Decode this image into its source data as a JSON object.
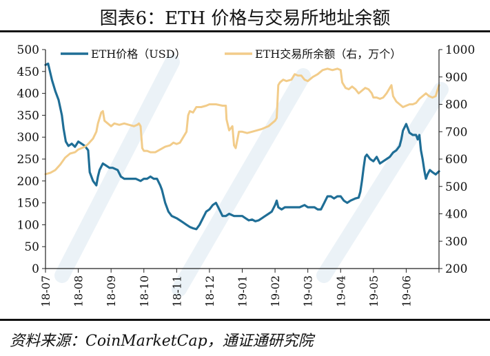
{
  "header": {
    "title": "图表6：ETH 价格与交易所地址余额"
  },
  "footer": {
    "source": "资料来源：CoinMarketCap，通证通研究院"
  },
  "chart_data": {
    "type": "line",
    "title": "图表6：ETH 价格与交易所地址余额",
    "xlabel": "",
    "ylabel": "",
    "x_ticks": [
      "18-07",
      "18-08",
      "18-09",
      "18-10",
      "18-11",
      "18-12",
      "19-01",
      "19-02",
      "19-03",
      "19-04",
      "19-05",
      "19-06"
    ],
    "x_range": [
      0,
      12
    ],
    "y_left": {
      "range": [
        0,
        500
      ],
      "ticks": [
        0,
        50,
        100,
        150,
        200,
        250,
        300,
        350,
        400,
        450,
        500
      ]
    },
    "y_right": {
      "range": [
        200,
        1000
      ],
      "ticks": [
        200,
        300,
        400,
        500,
        600,
        700,
        800,
        900,
        1000
      ]
    },
    "grid": false,
    "legend": "top",
    "series": [
      {
        "name": "ETH价格（USD）",
        "axis": "left",
        "color": "#1f6e96",
        "points": [
          [
            0.0,
            465
          ],
          [
            0.08,
            468
          ],
          [
            0.2,
            430
          ],
          [
            0.3,
            405
          ],
          [
            0.4,
            385
          ],
          [
            0.5,
            350
          ],
          [
            0.55,
            320
          ],
          [
            0.62,
            290
          ],
          [
            0.7,
            280
          ],
          [
            0.8,
            285
          ],
          [
            0.9,
            278
          ],
          [
            1.0,
            290
          ],
          [
            1.1,
            285
          ],
          [
            1.2,
            280
          ],
          [
            1.3,
            270
          ],
          [
            1.35,
            220
          ],
          [
            1.45,
            200
          ],
          [
            1.55,
            190
          ],
          [
            1.6,
            210
          ],
          [
            1.65,
            225
          ],
          [
            1.75,
            240
          ],
          [
            1.85,
            235
          ],
          [
            1.95,
            230
          ],
          [
            2.05,
            230
          ],
          [
            2.2,
            225
          ],
          [
            2.3,
            210
          ],
          [
            2.4,
            205
          ],
          [
            2.5,
            205
          ],
          [
            2.6,
            205
          ],
          [
            2.75,
            205
          ],
          [
            2.9,
            200
          ],
          [
            3.0,
            205
          ],
          [
            3.1,
            205
          ],
          [
            3.2,
            210
          ],
          [
            3.3,
            205
          ],
          [
            3.4,
            205
          ],
          [
            3.5,
            190
          ],
          [
            3.55,
            180
          ],
          [
            3.65,
            150
          ],
          [
            3.75,
            130
          ],
          [
            3.85,
            120
          ],
          [
            4.0,
            115
          ],
          [
            4.1,
            110
          ],
          [
            4.2,
            105
          ],
          [
            4.3,
            100
          ],
          [
            4.4,
            95
          ],
          [
            4.5,
            92
          ],
          [
            4.6,
            90
          ],
          [
            4.7,
            100
          ],
          [
            4.8,
            115
          ],
          [
            4.9,
            130
          ],
          [
            5.0,
            135
          ],
          [
            5.1,
            145
          ],
          [
            5.2,
            150
          ],
          [
            5.3,
            135
          ],
          [
            5.4,
            120
          ],
          [
            5.5,
            120
          ],
          [
            5.6,
            125
          ],
          [
            5.75,
            120
          ],
          [
            5.9,
            120
          ],
          [
            6.0,
            120
          ],
          [
            6.1,
            115
          ],
          [
            6.2,
            110
          ],
          [
            6.3,
            112
          ],
          [
            6.4,
            108
          ],
          [
            6.5,
            110
          ],
          [
            6.6,
            115
          ],
          [
            6.7,
            120
          ],
          [
            6.8,
            125
          ],
          [
            6.9,
            130
          ],
          [
            7.0,
            145
          ],
          [
            7.05,
            155
          ],
          [
            7.1,
            140
          ],
          [
            7.2,
            135
          ],
          [
            7.3,
            140
          ],
          [
            7.45,
            140
          ],
          [
            7.6,
            140
          ],
          [
            7.75,
            140
          ],
          [
            7.9,
            145
          ],
          [
            8.0,
            140
          ],
          [
            8.1,
            140
          ],
          [
            8.2,
            140
          ],
          [
            8.3,
            135
          ],
          [
            8.4,
            135
          ],
          [
            8.5,
            150
          ],
          [
            8.6,
            165
          ],
          [
            8.7,
            165
          ],
          [
            8.8,
            160
          ],
          [
            8.9,
            165
          ],
          [
            9.0,
            165
          ],
          [
            9.1,
            155
          ],
          [
            9.2,
            150
          ],
          [
            9.3,
            155
          ],
          [
            9.45,
            160
          ],
          [
            9.55,
            162
          ],
          [
            9.6,
            175
          ],
          [
            9.65,
            200
          ],
          [
            9.7,
            230
          ],
          [
            9.75,
            255
          ],
          [
            9.8,
            260
          ],
          [
            9.9,
            250
          ],
          [
            10.0,
            245
          ],
          [
            10.1,
            255
          ],
          [
            10.2,
            240
          ],
          [
            10.3,
            245
          ],
          [
            10.4,
            250
          ],
          [
            10.5,
            255
          ],
          [
            10.6,
            265
          ],
          [
            10.7,
            270
          ],
          [
            10.8,
            280
          ],
          [
            10.85,
            295
          ],
          [
            10.9,
            315
          ],
          [
            11.0,
            330
          ],
          [
            11.05,
            320
          ],
          [
            11.1,
            310
          ],
          [
            11.2,
            305
          ],
          [
            11.3,
            305
          ],
          [
            11.35,
            295
          ],
          [
            11.4,
            305
          ],
          [
            11.45,
            270
          ],
          [
            11.5,
            250
          ],
          [
            11.55,
            225
          ],
          [
            11.6,
            205
          ],
          [
            11.65,
            215
          ],
          [
            11.72,
            225
          ],
          [
            11.8,
            220
          ],
          [
            11.9,
            215
          ],
          [
            12.0,
            222
          ]
        ]
      },
      {
        "name": "ETH交易所余额（右，万个）",
        "axis": "right",
        "color": "#f2cc8a",
        "points": [
          [
            0.0,
            545
          ],
          [
            0.15,
            550
          ],
          [
            0.3,
            560
          ],
          [
            0.45,
            580
          ],
          [
            0.6,
            605
          ],
          [
            0.75,
            620
          ],
          [
            0.9,
            625
          ],
          [
            1.0,
            635
          ],
          [
            1.1,
            640
          ],
          [
            1.2,
            645
          ],
          [
            1.3,
            655
          ],
          [
            1.45,
            675
          ],
          [
            1.55,
            700
          ],
          [
            1.6,
            730
          ],
          [
            1.7,
            770
          ],
          [
            1.75,
            775
          ],
          [
            1.8,
            740
          ],
          [
            1.9,
            730
          ],
          [
            2.0,
            720
          ],
          [
            2.1,
            730
          ],
          [
            2.25,
            725
          ],
          [
            2.4,
            730
          ],
          [
            2.55,
            725
          ],
          [
            2.7,
            720
          ],
          [
            2.8,
            725
          ],
          [
            2.85,
            730
          ],
          [
            2.9,
            720
          ],
          [
            2.95,
            640
          ],
          [
            3.0,
            630
          ],
          [
            3.1,
            630
          ],
          [
            3.2,
            625
          ],
          [
            3.35,
            625
          ],
          [
            3.5,
            635
          ],
          [
            3.65,
            645
          ],
          [
            3.8,
            650
          ],
          [
            3.9,
            660
          ],
          [
            4.0,
            655
          ],
          [
            4.1,
            660
          ],
          [
            4.2,
            680
          ],
          [
            4.3,
            700
          ],
          [
            4.35,
            760
          ],
          [
            4.4,
            775
          ],
          [
            4.5,
            770
          ],
          [
            4.6,
            790
          ],
          [
            4.75,
            790
          ],
          [
            4.9,
            795
          ],
          [
            5.0,
            800
          ],
          [
            5.2,
            800
          ],
          [
            5.4,
            795
          ],
          [
            5.5,
            795
          ],
          [
            5.52,
            745
          ],
          [
            5.6,
            705
          ],
          [
            5.7,
            720
          ],
          [
            5.75,
            650
          ],
          [
            5.8,
            640
          ],
          [
            5.9,
            700
          ],
          [
            6.0,
            700
          ],
          [
            6.15,
            695
          ],
          [
            6.3,
            700
          ],
          [
            6.45,
            705
          ],
          [
            6.6,
            710
          ],
          [
            6.7,
            715
          ],
          [
            6.8,
            720
          ],
          [
            6.9,
            730
          ],
          [
            7.0,
            740
          ],
          [
            7.05,
            750
          ],
          [
            7.1,
            870
          ],
          [
            7.15,
            880
          ],
          [
            7.25,
            890
          ],
          [
            7.35,
            885
          ],
          [
            7.5,
            890
          ],
          [
            7.6,
            910
          ],
          [
            7.7,
            905
          ],
          [
            7.8,
            905
          ],
          [
            7.9,
            890
          ],
          [
            8.0,
            885
          ],
          [
            8.15,
            900
          ],
          [
            8.3,
            910
          ],
          [
            8.45,
            925
          ],
          [
            8.6,
            930
          ],
          [
            8.75,
            925
          ],
          [
            8.9,
            930
          ],
          [
            9.0,
            925
          ],
          [
            9.05,
            880
          ],
          [
            9.15,
            860
          ],
          [
            9.25,
            855
          ],
          [
            9.35,
            865
          ],
          [
            9.45,
            855
          ],
          [
            9.55,
            840
          ],
          [
            9.65,
            850
          ],
          [
            9.75,
            860
          ],
          [
            9.85,
            855
          ],
          [
            9.95,
            840
          ],
          [
            10.0,
            825
          ],
          [
            10.1,
            825
          ],
          [
            10.2,
            820
          ],
          [
            10.3,
            825
          ],
          [
            10.4,
            840
          ],
          [
            10.5,
            860
          ],
          [
            10.55,
            870
          ],
          [
            10.6,
            830
          ],
          [
            10.7,
            810
          ],
          [
            10.8,
            800
          ],
          [
            10.9,
            790
          ],
          [
            11.0,
            795
          ],
          [
            11.1,
            800
          ],
          [
            11.2,
            800
          ],
          [
            11.3,
            805
          ],
          [
            11.4,
            820
          ],
          [
            11.5,
            830
          ],
          [
            11.6,
            840
          ],
          [
            11.7,
            830
          ],
          [
            11.8,
            825
          ],
          [
            11.9,
            830
          ],
          [
            12.0,
            870
          ]
        ]
      }
    ]
  }
}
